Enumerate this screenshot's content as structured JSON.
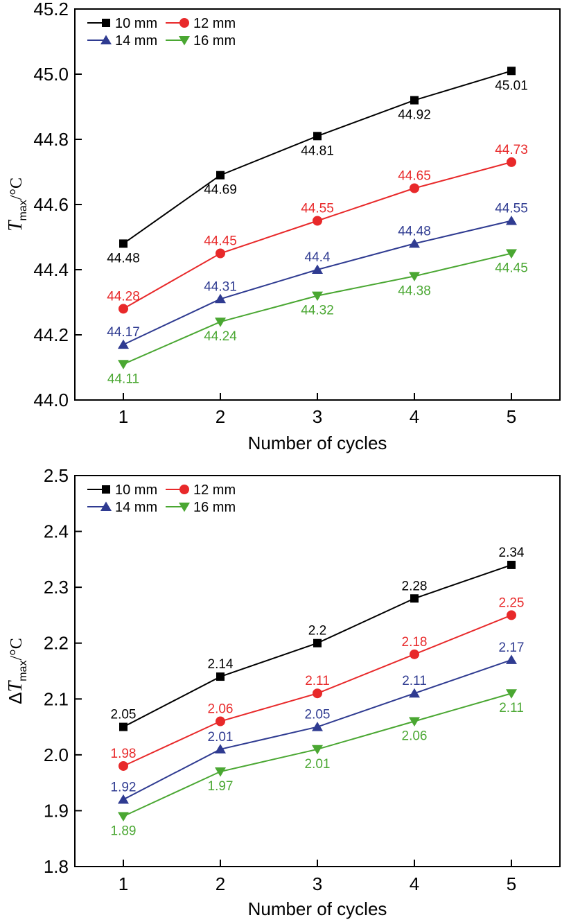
{
  "chart_data": [
    {
      "type": "line",
      "xlabel": "Number of cycles",
      "ylabel": {
        "main": "T",
        "sub": "max",
        "unit": "/°C",
        "prefix": ""
      },
      "x": [
        1,
        2,
        3,
        4,
        5
      ],
      "xticks": [
        "1",
        "2",
        "3",
        "4",
        "5"
      ],
      "xlim": [
        0.5,
        5.5
      ],
      "ylim": [
        44.0,
        45.2
      ],
      "yticks": [
        "44.0",
        "44.2",
        "44.4",
        "44.6",
        "44.8",
        "45.0",
        "45.2"
      ],
      "legend_position": "top-left",
      "series": [
        {
          "name": "10 mm",
          "color": "#000000",
          "marker": "square",
          "values": [
            44.48,
            44.69,
            44.81,
            44.92,
            45.01
          ],
          "labels": [
            "44.48",
            "44.69",
            "44.81",
            "44.92",
            "45.01"
          ],
          "label_pos": [
            "below",
            "below",
            "below",
            "below",
            "below"
          ]
        },
        {
          "name": "12 mm",
          "color": "#e8292a",
          "marker": "circle",
          "values": [
            44.28,
            44.45,
            44.55,
            44.65,
            44.73
          ],
          "labels": [
            "44.28",
            "44.45",
            "44.55",
            "44.65",
            "44.73"
          ],
          "label_pos": [
            "above",
            "above",
            "above",
            "above",
            "above"
          ]
        },
        {
          "name": "14 mm",
          "color": "#2f3b91",
          "marker": "triangle-up",
          "values": [
            44.17,
            44.31,
            44.4,
            44.48,
            44.55
          ],
          "labels": [
            "44.17",
            "44.31",
            "44.4",
            "44.48",
            "44.55"
          ],
          "label_pos": [
            "above",
            "above",
            "above",
            "above",
            "above"
          ]
        },
        {
          "name": "16 mm",
          "color": "#4aa732",
          "marker": "triangle-down",
          "values": [
            44.11,
            44.24,
            44.32,
            44.38,
            44.45
          ],
          "labels": [
            "44.11",
            "44.24",
            "44.32",
            "44.38",
            "44.45"
          ],
          "label_pos": [
            "below",
            "below",
            "below",
            "below",
            "below"
          ]
        }
      ]
    },
    {
      "type": "line",
      "xlabel": "Number of cycles",
      "ylabel": {
        "main": "T",
        "sub": "max",
        "unit": "/°C",
        "prefix": "Δ"
      },
      "x": [
        1,
        2,
        3,
        4,
        5
      ],
      "xticks": [
        "1",
        "2",
        "3",
        "4",
        "5"
      ],
      "xlim": [
        0.5,
        5.5
      ],
      "ylim": [
        1.8,
        2.5
      ],
      "yticks": [
        "1.8",
        "1.9",
        "2.0",
        "2.1",
        "2.2",
        "2.3",
        "2.4",
        "2.5"
      ],
      "legend_position": "top-left",
      "series": [
        {
          "name": "10 mm",
          "color": "#000000",
          "marker": "square",
          "values": [
            2.05,
            2.14,
            2.2,
            2.28,
            2.34
          ],
          "labels": [
            "2.05",
            "2.14",
            "2.2",
            "2.28",
            "2.34"
          ],
          "label_pos": [
            "above",
            "above",
            "above",
            "above",
            "above"
          ]
        },
        {
          "name": "12 mm",
          "color": "#e8292a",
          "marker": "circle",
          "values": [
            1.98,
            2.06,
            2.11,
            2.18,
            2.25
          ],
          "labels": [
            "1.98",
            "2.06",
            "2.11",
            "2.18",
            "2.25"
          ],
          "label_pos": [
            "above",
            "above",
            "above",
            "above",
            "above"
          ]
        },
        {
          "name": "14 mm",
          "color": "#2f3b91",
          "marker": "triangle-up",
          "values": [
            1.92,
            2.01,
            2.05,
            2.11,
            2.17
          ],
          "labels": [
            "1.92",
            "2.01",
            "2.05",
            "2.11",
            "2.17"
          ],
          "label_pos": [
            "above",
            "above",
            "above",
            "above",
            "above"
          ]
        },
        {
          "name": "16 mm",
          "color": "#4aa732",
          "marker": "triangle-down",
          "values": [
            1.89,
            1.97,
            2.01,
            2.06,
            2.11
          ],
          "labels": [
            "1.89",
            "1.97",
            "2.01",
            "2.06",
            "2.11"
          ],
          "label_pos": [
            "below",
            "below",
            "below",
            "below",
            "below"
          ]
        }
      ]
    }
  ]
}
